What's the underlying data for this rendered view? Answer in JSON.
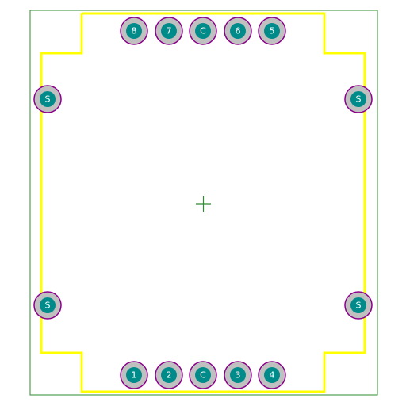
{
  "colors": {
    "background": "#ffffff",
    "board_outline": "#2e8b2e",
    "silkscreen": "#ffff00",
    "pad_ring": "#c0c0c0",
    "pad_ring_edge": "#8b008b",
    "pad_core": "#008b8b",
    "origin_marker": "#2e8b2e",
    "label": "#ffffff"
  },
  "icons": {
    "origin": "crosshair-icon"
  },
  "top_pins": [
    "8",
    "7",
    "C",
    "6",
    "5"
  ],
  "bottom_pins": [
    "1",
    "2",
    "C",
    "3",
    "4"
  ],
  "left_pins": [
    "S",
    "S"
  ],
  "right_pins": [
    "S",
    "S"
  ]
}
